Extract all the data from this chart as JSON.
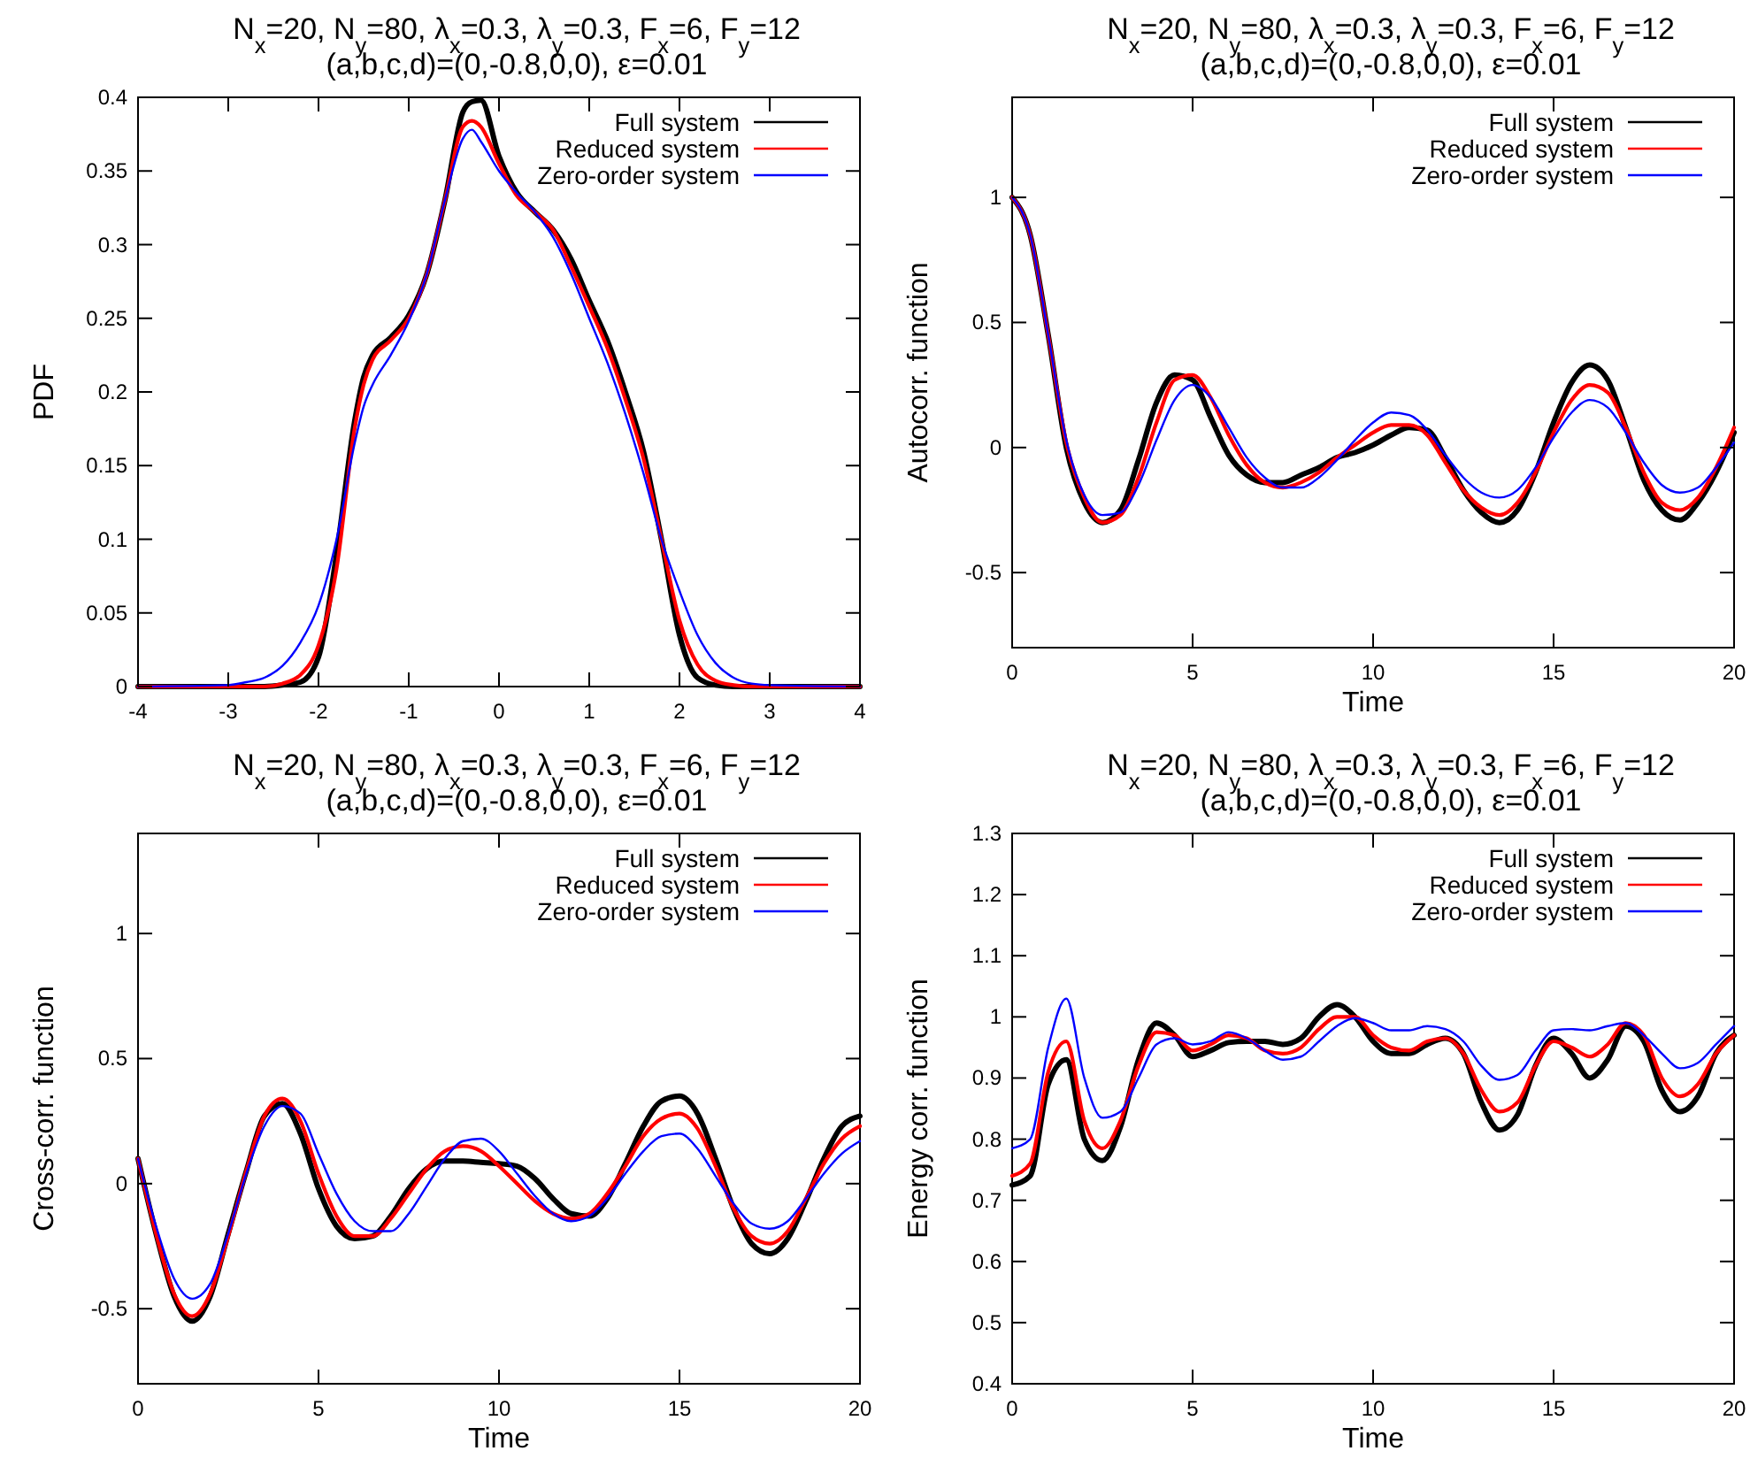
{
  "chart_data": [
    {
      "type": "line",
      "title": "N$_{x}$=20, N$_{y}$=80, λ$_{x}$=0.3, λ$_{y}$=0.3, F$_{x}$=6, F$_{y}$=12",
      "subtitle": "(a,b,c,d)=(0,-0.8,0,0), ε=0.01",
      "ylabel": "PDF",
      "xlim": [
        -4,
        4
      ],
      "xticks": [
        -4,
        -3,
        -2,
        -1,
        0,
        1,
        2,
        3,
        4
      ],
      "ylim": [
        0,
        0.4
      ],
      "yticks": [
        0,
        0.05,
        0.1,
        0.15,
        0.2,
        0.25,
        0.3,
        0.35,
        0.4
      ],
      "legend": "top right",
      "grid": false,
      "marker": "none",
      "line_style": "solid",
      "x": [
        -4,
        -3,
        -2.8,
        -2.6,
        -2.4,
        -2.2,
        -2,
        -1.8,
        -1.6,
        -1.5,
        -1.4,
        -1.2,
        -1,
        -0.8,
        -0.6,
        -0.4,
        -0.3,
        -0.2,
        0,
        0.2,
        0.4,
        0.6,
        0.8,
        1,
        1.2,
        1.4,
        1.6,
        1.8,
        2,
        2.2,
        2.4,
        2.6,
        2.8,
        3,
        4
      ],
      "series": [
        {
          "name": "Full system",
          "color": "#000000",
          "values": [
            0,
            0,
            0,
            0,
            0.001,
            0.003,
            0.02,
            0.09,
            0.18,
            0.21,
            0.225,
            0.237,
            0.252,
            0.28,
            0.33,
            0.39,
            0.397,
            0.398,
            0.36,
            0.335,
            0.322,
            0.31,
            0.29,
            0.262,
            0.235,
            0.2,
            0.16,
            0.1,
            0.035,
            0.006,
            0.001,
            0,
            0,
            0,
            0
          ]
        },
        {
          "name": "Reduced system",
          "color": "#ff0000",
          "values": [
            0,
            0,
            0,
            0,
            0.002,
            0.008,
            0.028,
            0.08,
            0.175,
            0.205,
            0.222,
            0.235,
            0.25,
            0.28,
            0.33,
            0.38,
            0.384,
            0.38,
            0.355,
            0.333,
            0.322,
            0.31,
            0.285,
            0.258,
            0.23,
            0.195,
            0.155,
            0.1,
            0.045,
            0.015,
            0.004,
            0.001,
            0,
            0,
            0
          ]
        },
        {
          "name": "Zero-order system",
          "color": "#0000ff",
          "values": [
            0,
            0.001,
            0.003,
            0.006,
            0.014,
            0.03,
            0.055,
            0.1,
            0.165,
            0.19,
            0.205,
            0.225,
            0.248,
            0.28,
            0.33,
            0.372,
            0.378,
            0.37,
            0.35,
            0.335,
            0.322,
            0.305,
            0.28,
            0.25,
            0.22,
            0.185,
            0.145,
            0.1,
            0.065,
            0.035,
            0.016,
            0.006,
            0.002,
            0.001,
            0
          ]
        }
      ]
    },
    {
      "type": "line",
      "title": "N$_{x}$=20, N$_{y}$=80, λ$_{x}$=0.3, λ$_{y}$=0.3, F$_{x}$=6, F$_{y}$=12",
      "subtitle": "(a,b,c,d)=(0,-0.8,0,0), ε=0.01",
      "xlabel": "Time",
      "ylabel": "Autocorr. function",
      "xlim": [
        0,
        20
      ],
      "xticks": [
        0,
        5,
        10,
        15,
        20
      ],
      "ylim": [
        -0.8,
        1.4
      ],
      "yticks": [
        -0.5,
        0,
        0.5,
        1
      ],
      "legend": "top right",
      "grid": false,
      "marker": "none",
      "line_style": "solid",
      "x": [
        0,
        0.5,
        1,
        1.5,
        2,
        2.5,
        3,
        3.5,
        4,
        4.5,
        5,
        5.5,
        6,
        6.5,
        7,
        7.5,
        8,
        8.5,
        9,
        9.5,
        10,
        10.5,
        11,
        11.5,
        12,
        12.5,
        13,
        13.5,
        14,
        14.5,
        15,
        15.5,
        16,
        16.5,
        17,
        17.5,
        18,
        18.5,
        19,
        19.5,
        20
      ],
      "series": [
        {
          "name": "Full system",
          "color": "#000000",
          "values": [
            1,
            0.85,
            0.45,
            0,
            -0.22,
            -0.3,
            -0.25,
            -0.05,
            0.18,
            0.29,
            0.27,
            0.12,
            -0.03,
            -0.11,
            -0.14,
            -0.14,
            -0.11,
            -0.08,
            -0.04,
            -0.02,
            0.01,
            0.05,
            0.08,
            0.07,
            -0.04,
            -0.17,
            -0.26,
            -0.3,
            -0.25,
            -0.1,
            0.1,
            0.26,
            0.33,
            0.27,
            0.08,
            -0.13,
            -0.25,
            -0.29,
            -0.22,
            -0.1,
            0.06
          ]
        },
        {
          "name": "Reduced system",
          "color": "#ff0000",
          "values": [
            1,
            0.85,
            0.45,
            0.02,
            -0.2,
            -0.3,
            -0.27,
            -0.12,
            0.1,
            0.27,
            0.29,
            0.2,
            0.05,
            -0.07,
            -0.14,
            -0.16,
            -0.14,
            -0.1,
            -0.04,
            0.01,
            0.06,
            0.09,
            0.09,
            0.05,
            -0.06,
            -0.17,
            -0.24,
            -0.27,
            -0.22,
            -0.1,
            0.06,
            0.19,
            0.25,
            0.22,
            0.08,
            -0.1,
            -0.22,
            -0.25,
            -0.2,
            -0.08,
            0.08
          ]
        },
        {
          "name": "Zero-order system",
          "color": "#0000ff",
          "values": [
            1,
            0.85,
            0.45,
            0.03,
            -0.19,
            -0.27,
            -0.26,
            -0.15,
            0.03,
            0.19,
            0.25,
            0.2,
            0.08,
            -0.04,
            -0.12,
            -0.16,
            -0.16,
            -0.12,
            -0.05,
            0.03,
            0.1,
            0.14,
            0.13,
            0.07,
            -0.03,
            -0.12,
            -0.18,
            -0.2,
            -0.17,
            -0.08,
            0.04,
            0.14,
            0.19,
            0.16,
            0.06,
            -0.06,
            -0.15,
            -0.18,
            -0.16,
            -0.08,
            0.02
          ]
        }
      ]
    },
    {
      "type": "line",
      "title": "N$_{x}$=20, N$_{y}$=80, λ$_{x}$=0.3, λ$_{y}$=0.3, F$_{x}$=6, F$_{y}$=12",
      "subtitle": "(a,b,c,d)=(0,-0.8,0,0), ε=0.01",
      "xlabel": "Time",
      "ylabel": "Cross-corr. function",
      "xlim": [
        0,
        20
      ],
      "xticks": [
        0,
        5,
        10,
        15,
        20
      ],
      "ylim": [
        -0.8,
        1.4
      ],
      "yticks": [
        -0.5,
        0,
        0.5,
        1
      ],
      "legend": "top right",
      "grid": false,
      "marker": "none",
      "line_style": "solid",
      "x": [
        0,
        0.5,
        1,
        1.5,
        2,
        2.5,
        3,
        3.5,
        4,
        4.5,
        5,
        5.5,
        6,
        6.5,
        7,
        7.5,
        8,
        8.5,
        9,
        9.5,
        10,
        10.5,
        11,
        11.5,
        12,
        12.5,
        13,
        13.5,
        14,
        14.5,
        15,
        15.5,
        16,
        16.5,
        17,
        17.5,
        18,
        18.5,
        19,
        19.5,
        20
      ],
      "series": [
        {
          "name": "Full system",
          "color": "#000000",
          "values": [
            0.1,
            -0.2,
            -0.45,
            -0.55,
            -0.45,
            -0.2,
            0.05,
            0.27,
            0.32,
            0.2,
            -0.02,
            -0.17,
            -0.22,
            -0.21,
            -0.13,
            -0.02,
            0.06,
            0.09,
            0.09,
            0.085,
            0.08,
            0.07,
            0.02,
            -0.06,
            -0.12,
            -0.13,
            -0.06,
            0.08,
            0.23,
            0.33,
            0.35,
            0.28,
            0.1,
            -0.1,
            -0.24,
            -0.28,
            -0.22,
            -0.07,
            0.1,
            0.23,
            0.27
          ]
        },
        {
          "name": "Reduced system",
          "color": "#ff0000",
          "values": [
            0.1,
            -0.2,
            -0.44,
            -0.53,
            -0.44,
            -0.21,
            0.05,
            0.27,
            0.34,
            0.25,
            0.04,
            -0.13,
            -0.21,
            -0.21,
            -0.14,
            -0.04,
            0.06,
            0.13,
            0.15,
            0.13,
            0.07,
            0,
            -0.07,
            -0.12,
            -0.14,
            -0.12,
            -0.04,
            0.07,
            0.19,
            0.26,
            0.28,
            0.22,
            0.07,
            -0.1,
            -0.21,
            -0.24,
            -0.19,
            -0.06,
            0.08,
            0.18,
            0.23
          ]
        },
        {
          "name": "Zero-order system",
          "color": "#0000ff",
          "values": [
            0.1,
            -0.17,
            -0.38,
            -0.46,
            -0.4,
            -0.2,
            0.04,
            0.23,
            0.31,
            0.28,
            0.12,
            -0.04,
            -0.15,
            -0.19,
            -0.19,
            -0.12,
            -0.01,
            0.1,
            0.17,
            0.18,
            0.13,
            0.04,
            -0.05,
            -0.12,
            -0.15,
            -0.13,
            -0.06,
            0.04,
            0.13,
            0.19,
            0.2,
            0.14,
            0.03,
            -0.08,
            -0.16,
            -0.18,
            -0.15,
            -0.06,
            0.04,
            0.12,
            0.17
          ]
        }
      ]
    },
    {
      "type": "line",
      "title": "N$_{x}$=20, N$_{y}$=80, λ$_{x}$=0.3, λ$_{y}$=0.3, F$_{x}$=6, F$_{y}$=12",
      "subtitle": "(a,b,c,d)=(0,-0.8,0,0), ε=0.01",
      "xlabel": "Time",
      "ylabel": "Energy corr. function",
      "xlim": [
        0,
        20
      ],
      "xticks": [
        0,
        5,
        10,
        15,
        20
      ],
      "ylim": [
        0.4,
        1.3
      ],
      "yticks": [
        0.4,
        0.5,
        0.6,
        0.7,
        0.8,
        0.9,
        1,
        1.1,
        1.2,
        1.3
      ],
      "legend": "top right",
      "grid": false,
      "marker": "none",
      "line_style": "solid",
      "x": [
        0,
        0.5,
        1,
        1.5,
        2,
        2.5,
        3,
        3.5,
        4,
        4.5,
        5,
        5.5,
        6,
        6.5,
        7,
        7.5,
        8,
        8.5,
        9,
        9.5,
        10,
        10.5,
        11,
        11.5,
        12,
        12.5,
        13,
        13.5,
        14,
        14.5,
        15,
        15.5,
        16,
        16.5,
        17,
        17.5,
        18,
        18.5,
        19,
        19.5,
        20
      ],
      "series": [
        {
          "name": "Full system",
          "color": "#000000",
          "values": [
            0.725,
            0.74,
            0.89,
            0.93,
            0.8,
            0.765,
            0.82,
            0.93,
            0.99,
            0.97,
            0.935,
            0.945,
            0.958,
            0.96,
            0.96,
            0.955,
            0.965,
            1,
            1.02,
            1,
            0.96,
            0.94,
            0.94,
            0.955,
            0.965,
            0.94,
            0.86,
            0.815,
            0.84,
            0.92,
            0.965,
            0.94,
            0.9,
            0.93,
            0.985,
            0.96,
            0.88,
            0.845,
            0.87,
            0.94,
            0.97
          ]
        },
        {
          "name": "Reduced system",
          "color": "#ff0000",
          "values": [
            0.74,
            0.76,
            0.91,
            0.96,
            0.83,
            0.785,
            0.83,
            0.92,
            0.975,
            0.97,
            0.945,
            0.955,
            0.97,
            0.965,
            0.945,
            0.94,
            0.95,
            0.98,
            1,
            1,
            0.97,
            0.95,
            0.945,
            0.96,
            0.965,
            0.94,
            0.88,
            0.845,
            0.86,
            0.92,
            0.96,
            0.95,
            0.935,
            0.955,
            0.99,
            0.97,
            0.9,
            0.87,
            0.89,
            0.94,
            0.97
          ]
        },
        {
          "name": "Zero-order system",
          "color": "#0000ff",
          "values": [
            0.785,
            0.8,
            0.95,
            1.03,
            0.9,
            0.835,
            0.845,
            0.9,
            0.955,
            0.965,
            0.955,
            0.96,
            0.975,
            0.965,
            0.945,
            0.93,
            0.935,
            0.96,
            0.985,
            0.998,
            0.99,
            0.978,
            0.978,
            0.985,
            0.98,
            0.96,
            0.92,
            0.897,
            0.905,
            0.945,
            0.978,
            0.98,
            0.978,
            0.985,
            0.99,
            0.97,
            0.94,
            0.916,
            0.925,
            0.955,
            0.985
          ]
        }
      ]
    }
  ]
}
